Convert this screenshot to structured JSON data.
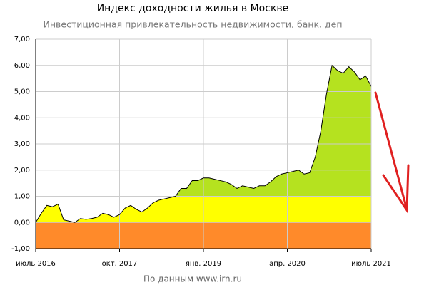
{
  "chart_data": {
    "type": "area",
    "title": "Индекс доходности жилья в Москве",
    "subtitle": "Инвестиционная привлекательность недвижимости, банк. деп",
    "source": "По данным www.irn.ru",
    "x": [
      "2016-07",
      "2016-08",
      "2016-09",
      "2016-10",
      "2016-11",
      "2016-12",
      "2017-01",
      "2017-02",
      "2017-03",
      "2017-04",
      "2017-05",
      "2017-06",
      "2017-07",
      "2017-08",
      "2017-09",
      "2017-10",
      "2017-11",
      "2017-12",
      "2018-01",
      "2018-02",
      "2018-03",
      "2018-04",
      "2018-05",
      "2018-06",
      "2018-07",
      "2018-08",
      "2018-09",
      "2018-10",
      "2018-11",
      "2018-12",
      "2019-01",
      "2019-02",
      "2019-03",
      "2019-04",
      "2019-05",
      "2019-06",
      "2019-07",
      "2019-08",
      "2019-09",
      "2019-10",
      "2019-11",
      "2019-12",
      "2020-01",
      "2020-02",
      "2020-03",
      "2020-04",
      "2020-05",
      "2020-06",
      "2020-07",
      "2020-08",
      "2020-09",
      "2020-10",
      "2020-11",
      "2020-12",
      "2021-01",
      "2021-02",
      "2021-03",
      "2021-04",
      "2021-05",
      "2021-06",
      "2021-07"
    ],
    "values": [
      0.0,
      0.35,
      0.65,
      0.6,
      0.7,
      0.1,
      0.05,
      0.0,
      0.15,
      0.12,
      0.15,
      0.2,
      0.35,
      0.3,
      0.2,
      0.3,
      0.55,
      0.65,
      0.5,
      0.4,
      0.55,
      0.75,
      0.85,
      0.9,
      0.95,
      1.0,
      1.3,
      1.3,
      1.6,
      1.6,
      1.7,
      1.7,
      1.65,
      1.6,
      1.55,
      1.45,
      1.3,
      1.4,
      1.35,
      1.3,
      1.4,
      1.4,
      1.55,
      1.75,
      1.85,
      1.9,
      1.95,
      2.0,
      1.85,
      1.9,
      2.5,
      3.5,
      4.9,
      6.0,
      5.8,
      5.7,
      5.95,
      5.75,
      5.45,
      5.6,
      5.2
    ],
    "color": "#000000",
    "bands": [
      {
        "from": -1,
        "to": 0,
        "color": "#ff8a2a"
      },
      {
        "from": 0,
        "to": 1,
        "color": "#ffff00"
      },
      {
        "from": 1,
        "to": 7,
        "color": "#b5e21f"
      }
    ],
    "xlim": [
      "2016-07",
      "2021-07"
    ],
    "xticks": [
      {
        "value": "2016-07",
        "label": "июль 2016"
      },
      {
        "value": "2017-10",
        "label": "окт. 2017"
      },
      {
        "value": "2019-01",
        "label": "янв. 2019"
      },
      {
        "value": "2020-04",
        "label": "апр. 2020"
      },
      {
        "value": "2021-07",
        "label": "июль 2021"
      }
    ],
    "ylim": [
      -1,
      7
    ],
    "yticks": [
      {
        "value": -1,
        "label": "-1,00"
      },
      {
        "value": 0,
        "label": "0,00"
      },
      {
        "value": 1,
        "label": "1,00"
      },
      {
        "value": 2,
        "label": "2,00"
      },
      {
        "value": 3,
        "label": "3,00"
      },
      {
        "value": 4,
        "label": "4,00"
      },
      {
        "value": 5,
        "label": "5,00"
      },
      {
        "value": 6,
        "label": "6,00"
      },
      {
        "value": 7,
        "label": "7,00"
      }
    ],
    "grid": true
  }
}
